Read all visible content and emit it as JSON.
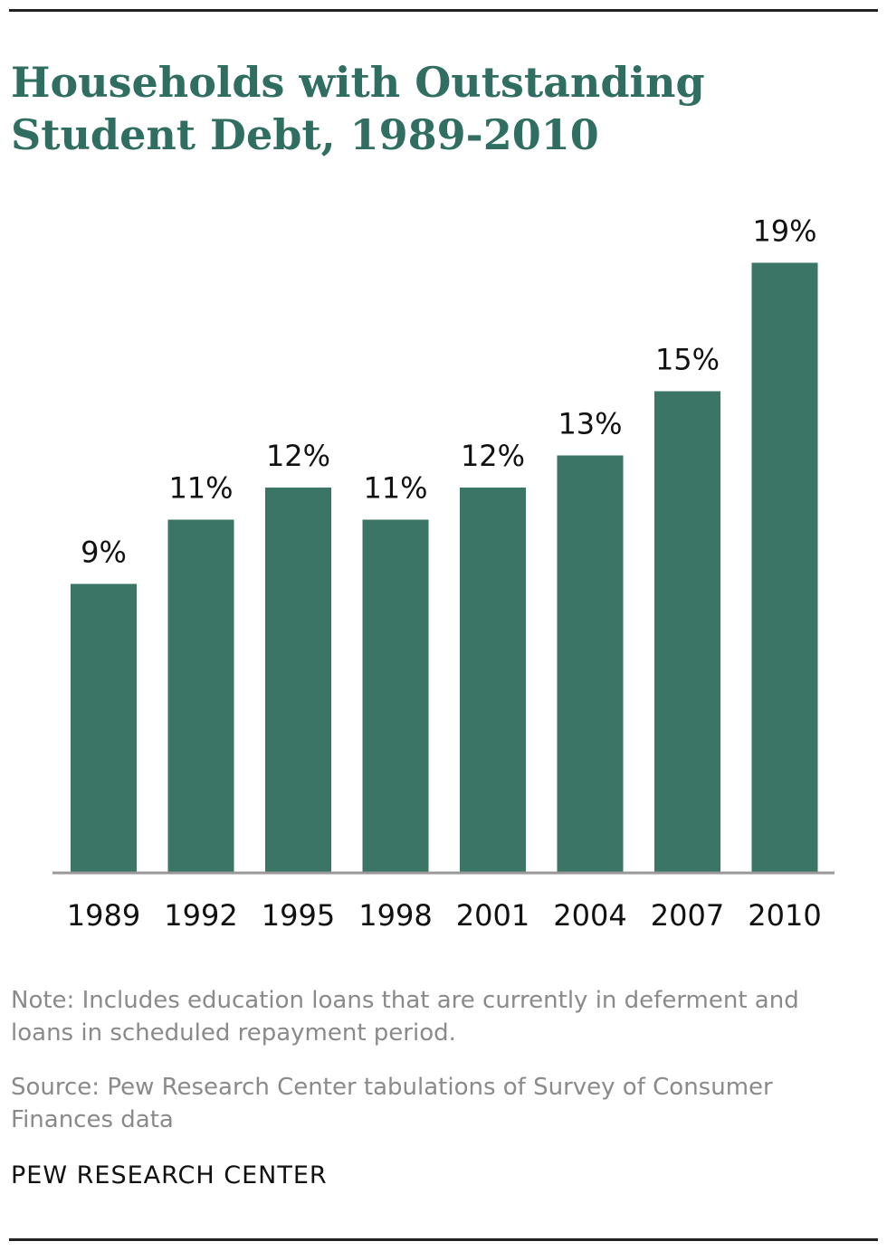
{
  "chart_data": {
    "type": "bar",
    "title": "Households with Outstanding Student Debt, 1989-2010",
    "categories": [
      "1989",
      "1992",
      "1995",
      "1998",
      "2001",
      "2004",
      "2007",
      "2010"
    ],
    "values": [
      9,
      11,
      12,
      11,
      12,
      13,
      15,
      19
    ],
    "value_labels": [
      "9%",
      "11%",
      "12%",
      "11%",
      "12%",
      "13%",
      "15%",
      "19%"
    ],
    "xlabel": "",
    "ylabel": "",
    "ylim": [
      0,
      20
    ],
    "grid": false,
    "bar_color": "#3b7566"
  },
  "note": "Note: Includes education loans that are currently in deferment and loans in scheduled repayment period.",
  "source": "Source: Pew Research Center tabulations of Survey of Consumer Finances data",
  "brand": "PEW RESEARCH  CENTER",
  "colors": {
    "title": "#2f6e60",
    "note": "#8a8a8a",
    "baseline": "#999999"
  }
}
